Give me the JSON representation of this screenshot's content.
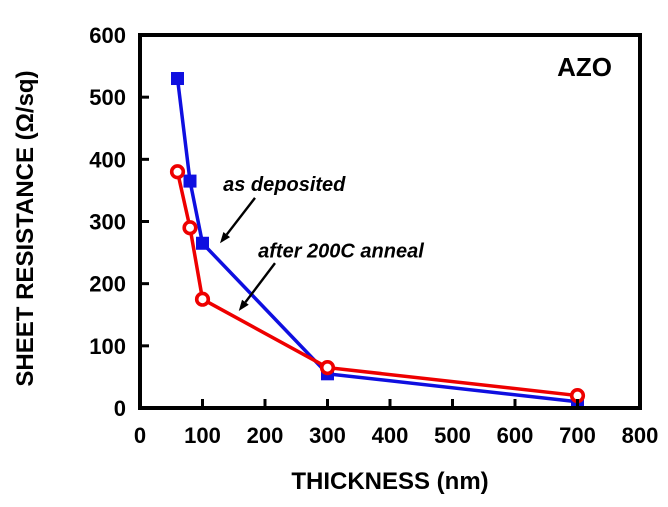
{
  "chart_data": {
    "type": "line",
    "title": "AZO",
    "xlabel": "THICKNESS (nm)",
    "ylabel": "SHEET RESISTANCE (Ω/sq)",
    "xlim": [
      0,
      800
    ],
    "ylim": [
      0,
      600
    ],
    "xticks": [
      0,
      100,
      200,
      300,
      400,
      500,
      600,
      700,
      800
    ],
    "yticks": [
      0,
      100,
      200,
      300,
      400,
      500,
      600
    ],
    "grid": false,
    "legend_position": "none",
    "background_color": "#ffffff",
    "axis_color": "#000000",
    "series": [
      {
        "name": "as deposited",
        "color": "#0f0fe0",
        "marker": "filled-square",
        "points": [
          [
            60,
            530
          ],
          [
            80,
            365
          ],
          [
            100,
            265
          ],
          [
            300,
            55
          ],
          [
            700,
            10
          ]
        ]
      },
      {
        "name": "after 200C anneal",
        "color": "#ee0000",
        "marker": "open-circle",
        "points": [
          [
            60,
            380
          ],
          [
            80,
            290
          ],
          [
            100,
            175
          ],
          [
            300,
            65
          ],
          [
            700,
            20
          ]
        ]
      }
    ],
    "annotations": [
      {
        "text": "as deposited",
        "text_at": {
          "x": 133,
          "y": 360
        },
        "arrow_from": {
          "x": 184,
          "y": 338
        },
        "arrow_to": {
          "x": 128,
          "y": 265
        }
      },
      {
        "text": "after 200C anneal",
        "text_at": {
          "x": 189,
          "y": 253
        },
        "arrow_from": {
          "x": 216,
          "y": 233
        },
        "arrow_to": {
          "x": 158,
          "y": 156
        }
      }
    ]
  }
}
